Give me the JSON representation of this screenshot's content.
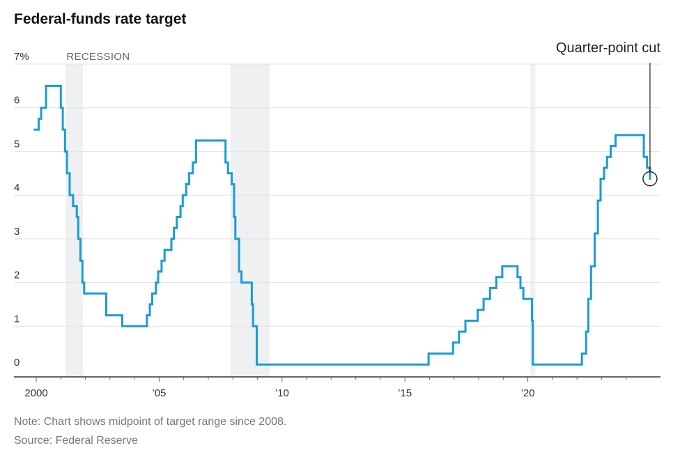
{
  "title": "Federal-funds rate target",
  "note": "Note: Chart shows midpoint of target range since 2008.",
  "source": "Source: Federal Reserve",
  "colors": {
    "line": "#1a9bd7",
    "recession": "#eef0f2",
    "grid": "#e2e2e2",
    "axis": "#333333"
  },
  "chart_data": {
    "type": "line",
    "title": "Federal-funds rate target",
    "xlabel": "",
    "ylabel": "",
    "xlim": [
      1999.6,
      2025.2
    ],
    "ylim": [
      0,
      7
    ],
    "grid": true,
    "x_ticks": [
      {
        "value": 2000,
        "label": "2000"
      },
      {
        "value": 2005,
        "label": "’05"
      },
      {
        "value": 2010,
        "label": "’10"
      },
      {
        "value": 2015,
        "label": "’15"
      },
      {
        "value": 2020,
        "label": "’20"
      }
    ],
    "y_ticks": [
      {
        "value": 0,
        "label": "0"
      },
      {
        "value": 1,
        "label": "1"
      },
      {
        "value": 2,
        "label": "2"
      },
      {
        "value": 3,
        "label": "3"
      },
      {
        "value": 4,
        "label": "4"
      },
      {
        "value": 5,
        "label": "5"
      },
      {
        "value": 6,
        "label": "6"
      },
      {
        "value": 7,
        "label": "7%"
      }
    ],
    "recessions": [
      {
        "start": 2001.2,
        "end": 2001.9,
        "label": "RECESSION"
      },
      {
        "start": 2007.9,
        "end": 2009.5,
        "label": ""
      },
      {
        "start": 2020.1,
        "end": 2020.3,
        "label": ""
      }
    ],
    "series": [
      {
        "name": "Federal-funds rate target",
        "step": true,
        "points": [
          [
            1999.9,
            5.5
          ],
          [
            2000.1,
            5.75
          ],
          [
            2000.2,
            6.0
          ],
          [
            2000.4,
            6.5
          ],
          [
            2001.0,
            6.0
          ],
          [
            2001.08,
            5.5
          ],
          [
            2001.17,
            5.0
          ],
          [
            2001.25,
            4.5
          ],
          [
            2001.36,
            4.0
          ],
          [
            2001.5,
            3.75
          ],
          [
            2001.65,
            3.5
          ],
          [
            2001.71,
            3.0
          ],
          [
            2001.8,
            2.5
          ],
          [
            2001.88,
            2.0
          ],
          [
            2001.95,
            1.75
          ],
          [
            2002.85,
            1.25
          ],
          [
            2003.5,
            1.0
          ],
          [
            2004.5,
            1.25
          ],
          [
            2004.62,
            1.5
          ],
          [
            2004.72,
            1.75
          ],
          [
            2004.87,
            2.0
          ],
          [
            2004.96,
            2.25
          ],
          [
            2005.1,
            2.5
          ],
          [
            2005.22,
            2.75
          ],
          [
            2005.5,
            3.0
          ],
          [
            2005.6,
            3.25
          ],
          [
            2005.72,
            3.5
          ],
          [
            2005.87,
            3.75
          ],
          [
            2005.96,
            4.0
          ],
          [
            2006.1,
            4.25
          ],
          [
            2006.22,
            4.5
          ],
          [
            2006.37,
            4.75
          ],
          [
            2006.5,
            5.25
          ],
          [
            2007.7,
            4.75
          ],
          [
            2007.8,
            4.5
          ],
          [
            2007.95,
            4.25
          ],
          [
            2008.05,
            3.5
          ],
          [
            2008.1,
            3.0
          ],
          [
            2008.25,
            2.25
          ],
          [
            2008.35,
            2.0
          ],
          [
            2008.77,
            1.5
          ],
          [
            2008.82,
            1.0
          ],
          [
            2008.97,
            0.125
          ],
          [
            2015.96,
            0.375
          ],
          [
            2016.96,
            0.625
          ],
          [
            2017.2,
            0.875
          ],
          [
            2017.46,
            1.125
          ],
          [
            2017.96,
            1.375
          ],
          [
            2018.2,
            1.625
          ],
          [
            2018.46,
            1.875
          ],
          [
            2018.72,
            2.125
          ],
          [
            2018.96,
            2.375
          ],
          [
            2019.58,
            2.125
          ],
          [
            2019.7,
            1.875
          ],
          [
            2019.82,
            1.625
          ],
          [
            2020.17,
            1.125
          ],
          [
            2020.2,
            0.125
          ],
          [
            2022.2,
            0.375
          ],
          [
            2022.37,
            0.875
          ],
          [
            2022.46,
            1.625
          ],
          [
            2022.57,
            2.375
          ],
          [
            2022.72,
            3.125
          ],
          [
            2022.85,
            3.875
          ],
          [
            2022.96,
            4.375
          ],
          [
            2023.1,
            4.625
          ],
          [
            2023.22,
            4.875
          ],
          [
            2023.37,
            5.125
          ],
          [
            2023.57,
            5.375
          ],
          [
            2024.72,
            4.875
          ],
          [
            2024.85,
            4.625
          ],
          [
            2024.97,
            4.375
          ],
          [
            2025.0,
            4.375
          ]
        ]
      }
    ],
    "annotations": [
      {
        "text": "Quarter-point cut",
        "x": 2024.97,
        "y": 4.375
      }
    ]
  }
}
